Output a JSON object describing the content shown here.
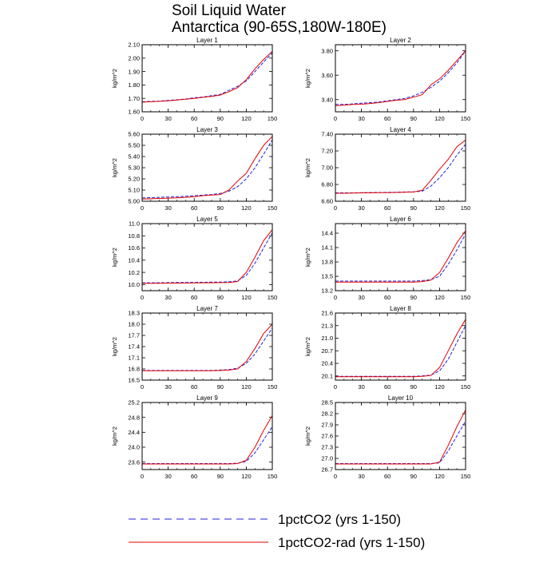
{
  "figure": {
    "title_line1": "Soil Liquid Water",
    "title_line2": "Antarctica (90-65S,180W-180E)",
    "ylabel": "kg/m^2",
    "legend": [
      {
        "label": "1pctCO2 (yrs 1-150)",
        "color": "#2020e0",
        "dash": true
      },
      {
        "label": "1pctCO2-rad (yrs 1-150)",
        "color": "#e00000",
        "dash": false
      }
    ]
  },
  "chart_data": [
    {
      "type": "line",
      "title": "Layer 1",
      "ylabel": "kg/m^2",
      "xlim": [
        0,
        150
      ],
      "ylim": [
        1.6,
        2.1
      ],
      "x_ticks": [
        0,
        30,
        60,
        90,
        120,
        150
      ],
      "y_ticks": [
        1.6,
        1.7,
        1.8,
        1.9,
        2.0,
        2.1
      ],
      "y_tick_labels": [
        "1.60",
        "1.70",
        "1.80",
        "1.90",
        "2.00",
        "2.10"
      ],
      "x": [
        0,
        10,
        20,
        30,
        40,
        50,
        60,
        70,
        80,
        90,
        100,
        110,
        120,
        130,
        140,
        150
      ],
      "series": [
        {
          "name": "1pctCO2 (yrs 1-150)",
          "color": "#2020e0",
          "dash": true,
          "values": [
            1.675,
            1.678,
            1.68,
            1.685,
            1.69,
            1.695,
            1.705,
            1.71,
            1.72,
            1.73,
            1.76,
            1.79,
            1.83,
            1.9,
            1.97,
            2.04
          ]
        },
        {
          "name": "1pctCO2-rad (yrs 1-150)",
          "color": "#e00000",
          "dash": false,
          "values": [
            1.672,
            1.675,
            1.678,
            1.682,
            1.688,
            1.694,
            1.7,
            1.708,
            1.715,
            1.725,
            1.75,
            1.78,
            1.84,
            1.92,
            1.99,
            2.05
          ]
        }
      ]
    },
    {
      "type": "line",
      "title": "Layer 2",
      "ylabel": "kg/m^2",
      "xlim": [
        0,
        150
      ],
      "ylim": [
        3.3,
        3.85
      ],
      "x_ticks": [
        0,
        30,
        60,
        90,
        120,
        150
      ],
      "y_ticks": [
        3.4,
        3.6,
        3.8
      ],
      "y_tick_labels": [
        "3.40",
        "3.60",
        "3.80"
      ],
      "x": [
        0,
        10,
        20,
        30,
        40,
        50,
        60,
        70,
        80,
        90,
        100,
        110,
        120,
        130,
        140,
        150
      ],
      "series": [
        {
          "name": "1pctCO2 (yrs 1-150)",
          "color": "#2020e0",
          "dash": true,
          "values": [
            3.36,
            3.36,
            3.365,
            3.37,
            3.375,
            3.38,
            3.39,
            3.4,
            3.41,
            3.43,
            3.46,
            3.5,
            3.55,
            3.62,
            3.7,
            3.8
          ]
        },
        {
          "name": "1pctCO2-rad (yrs 1-150)",
          "color": "#e00000",
          "dash": false,
          "values": [
            3.35,
            3.355,
            3.36,
            3.362,
            3.368,
            3.375,
            3.385,
            3.395,
            3.4,
            3.42,
            3.44,
            3.52,
            3.57,
            3.64,
            3.72,
            3.8
          ]
        }
      ]
    },
    {
      "type": "line",
      "title": "Layer 3",
      "ylabel": "kg/m^2",
      "xlim": [
        0,
        150
      ],
      "ylim": [
        5.0,
        5.6
      ],
      "x_ticks": [
        0,
        30,
        60,
        90,
        120,
        150
      ],
      "y_ticks": [
        5.0,
        5.1,
        5.2,
        5.3,
        5.4,
        5.5,
        5.6
      ],
      "y_tick_labels": [
        "5.00",
        "5.10",
        "5.20",
        "5.30",
        "5.40",
        "5.50",
        "5.60"
      ],
      "x": [
        0,
        10,
        20,
        30,
        40,
        50,
        60,
        70,
        80,
        90,
        100,
        110,
        120,
        130,
        140,
        150
      ],
      "series": [
        {
          "name": "1pctCO2 (yrs 1-150)",
          "color": "#2020e0",
          "dash": true,
          "values": [
            5.03,
            5.032,
            5.035,
            5.038,
            5.04,
            5.045,
            5.05,
            5.055,
            5.06,
            5.07,
            5.09,
            5.13,
            5.2,
            5.3,
            5.42,
            5.55
          ]
        },
        {
          "name": "1pctCO2-rad (yrs 1-150)",
          "color": "#e00000",
          "dash": false,
          "values": [
            5.02,
            5.022,
            5.025,
            5.028,
            5.03,
            5.035,
            5.04,
            5.05,
            5.055,
            5.06,
            5.1,
            5.18,
            5.25,
            5.38,
            5.5,
            5.58
          ]
        }
      ]
    },
    {
      "type": "line",
      "title": "Layer 4",
      "ylabel": "kg/m^2",
      "xlim": [
        0,
        150
      ],
      "ylim": [
        6.6,
        7.4
      ],
      "x_ticks": [
        0,
        30,
        60,
        90,
        120,
        150
      ],
      "y_ticks": [
        6.6,
        6.8,
        7.0,
        7.2,
        7.4
      ],
      "y_tick_labels": [
        "6.60",
        "6.80",
        "7.00",
        "7.20",
        "7.40"
      ],
      "x": [
        0,
        10,
        20,
        30,
        40,
        50,
        60,
        70,
        80,
        90,
        100,
        110,
        120,
        130,
        140,
        150
      ],
      "series": [
        {
          "name": "1pctCO2 (yrs 1-150)",
          "color": "#2020e0",
          "dash": true,
          "values": [
            6.7,
            6.7,
            6.7,
            6.702,
            6.704,
            6.705,
            6.706,
            6.708,
            6.71,
            6.712,
            6.72,
            6.78,
            6.88,
            7.0,
            7.15,
            7.28
          ]
        },
        {
          "name": "1pctCO2-rad (yrs 1-150)",
          "color": "#e00000",
          "dash": false,
          "values": [
            6.695,
            6.695,
            6.697,
            6.7,
            6.7,
            6.702,
            6.703,
            6.705,
            6.708,
            6.71,
            6.73,
            6.85,
            6.98,
            7.1,
            7.25,
            7.33
          ]
        }
      ]
    },
    {
      "type": "line",
      "title": "Layer 5",
      "ylabel": "kg/m^2",
      "xlim": [
        0,
        150
      ],
      "ylim": [
        9.9,
        11.0
      ],
      "x_ticks": [
        0,
        30,
        60,
        90,
        120,
        150
      ],
      "y_ticks": [
        10.0,
        10.2,
        10.4,
        10.6,
        10.8,
        11.0
      ],
      "y_tick_labels": [
        "10.0",
        "10.2",
        "10.4",
        "10.6",
        "10.8",
        "11.0"
      ],
      "x": [
        0,
        10,
        20,
        30,
        40,
        50,
        60,
        70,
        80,
        90,
        100,
        110,
        120,
        130,
        140,
        150
      ],
      "series": [
        {
          "name": "1pctCO2 (yrs 1-150)",
          "color": "#2020e0",
          "dash": true,
          "values": [
            10.03,
            10.03,
            10.03,
            10.032,
            10.034,
            10.035,
            10.036,
            10.038,
            10.04,
            10.04,
            10.045,
            10.06,
            10.15,
            10.35,
            10.6,
            10.85
          ]
        },
        {
          "name": "1pctCO2-rad (yrs 1-150)",
          "color": "#e00000",
          "dash": false,
          "values": [
            10.02,
            10.02,
            10.022,
            10.024,
            10.025,
            10.026,
            10.028,
            10.03,
            10.03,
            10.032,
            10.035,
            10.05,
            10.2,
            10.45,
            10.72,
            10.9
          ]
        }
      ]
    },
    {
      "type": "line",
      "title": "Layer 6",
      "ylabel": "kg/m^2",
      "xlim": [
        0,
        150
      ],
      "ylim": [
        13.2,
        14.6
      ],
      "x_ticks": [
        0,
        30,
        60,
        90,
        120,
        150
      ],
      "y_ticks": [
        13.2,
        13.5,
        13.8,
        14.1,
        14.4
      ],
      "y_tick_labels": [
        "13.2",
        "13.5",
        "13.8",
        "14.1",
        "14.4"
      ],
      "x": [
        0,
        10,
        20,
        30,
        40,
        50,
        60,
        70,
        80,
        90,
        100,
        110,
        120,
        130,
        140,
        150
      ],
      "series": [
        {
          "name": "1pctCO2 (yrs 1-150)",
          "color": "#2020e0",
          "dash": true,
          "values": [
            13.4,
            13.4,
            13.4,
            13.4,
            13.4,
            13.4,
            13.4,
            13.4,
            13.4,
            13.4,
            13.41,
            13.43,
            13.5,
            13.75,
            14.05,
            14.38
          ]
        },
        {
          "name": "1pctCO2-rad (yrs 1-150)",
          "color": "#e00000",
          "dash": false,
          "values": [
            13.38,
            13.38,
            13.38,
            13.38,
            13.38,
            13.38,
            13.38,
            13.38,
            13.38,
            13.38,
            13.39,
            13.42,
            13.58,
            13.88,
            14.2,
            14.45
          ]
        }
      ]
    },
    {
      "type": "line",
      "title": "Layer 7",
      "ylabel": "kg/m^2",
      "xlim": [
        0,
        150
      ],
      "ylim": [
        16.5,
        18.3
      ],
      "x_ticks": [
        0,
        30,
        60,
        90,
        120,
        150
      ],
      "y_ticks": [
        16.5,
        16.8,
        17.1,
        17.4,
        17.7,
        18.0,
        18.3
      ],
      "y_tick_labels": [
        "16.5",
        "16.8",
        "17.1",
        "17.4",
        "17.7",
        "18.0",
        "18.3"
      ],
      "x": [
        0,
        10,
        20,
        30,
        40,
        50,
        60,
        70,
        80,
        90,
        100,
        110,
        120,
        130,
        140,
        150
      ],
      "series": [
        {
          "name": "1pctCO2 (yrs 1-150)",
          "color": "#2020e0",
          "dash": true,
          "values": [
            16.76,
            16.76,
            16.76,
            16.76,
            16.76,
            16.76,
            16.76,
            16.76,
            16.76,
            16.77,
            16.78,
            16.82,
            16.95,
            17.2,
            17.55,
            17.9
          ]
        },
        {
          "name": "1pctCO2-rad (yrs 1-150)",
          "color": "#e00000",
          "dash": false,
          "values": [
            16.75,
            16.75,
            16.75,
            16.75,
            16.75,
            16.75,
            16.75,
            16.75,
            16.75,
            16.76,
            16.77,
            16.8,
            17.0,
            17.35,
            17.75,
            18.0
          ]
        }
      ]
    },
    {
      "type": "line",
      "title": "Layer 8",
      "ylabel": "kg/m^2",
      "xlim": [
        0,
        150
      ],
      "ylim": [
        20.0,
        21.6
      ],
      "x_ticks": [
        0,
        30,
        60,
        90,
        120,
        150
      ],
      "y_ticks": [
        20.1,
        20.4,
        20.7,
        21.0,
        21.3,
        21.6
      ],
      "y_tick_labels": [
        "20.1",
        "20.4",
        "20.7",
        "21.0",
        "21.3",
        "21.6"
      ],
      "x": [
        0,
        10,
        20,
        30,
        40,
        50,
        60,
        70,
        80,
        90,
        100,
        110,
        120,
        130,
        140,
        150
      ],
      "series": [
        {
          "name": "1pctCO2 (yrs 1-150)",
          "color": "#2020e0",
          "dash": true,
          "values": [
            20.09,
            20.09,
            20.09,
            20.09,
            20.09,
            20.09,
            20.09,
            20.09,
            20.09,
            20.09,
            20.1,
            20.12,
            20.22,
            20.5,
            20.9,
            21.3
          ]
        },
        {
          "name": "1pctCO2-rad (yrs 1-150)",
          "color": "#e00000",
          "dash": false,
          "values": [
            20.08,
            20.08,
            20.08,
            20.08,
            20.08,
            20.08,
            20.08,
            20.08,
            20.08,
            20.08,
            20.09,
            20.11,
            20.3,
            20.7,
            21.1,
            21.45
          ]
        }
      ]
    },
    {
      "type": "line",
      "title": "Layer 9",
      "ylabel": "kg/m^2",
      "xlim": [
        0,
        150
      ],
      "ylim": [
        23.4,
        25.2
      ],
      "x_ticks": [
        0,
        30,
        60,
        90,
        120,
        150
      ],
      "y_ticks": [
        23.6,
        24.0,
        24.4,
        24.8,
        25.2
      ],
      "y_tick_labels": [
        "23.6",
        "24.0",
        "24.4",
        "24.8",
        "25.2"
      ],
      "x": [
        0,
        10,
        20,
        30,
        40,
        50,
        60,
        70,
        80,
        90,
        100,
        110,
        120,
        130,
        140,
        150
      ],
      "series": [
        {
          "name": "1pctCO2 (yrs 1-150)",
          "color": "#2020e0",
          "dash": true,
          "values": [
            23.56,
            23.56,
            23.56,
            23.56,
            23.56,
            23.56,
            23.56,
            23.56,
            23.56,
            23.56,
            23.56,
            23.57,
            23.62,
            23.85,
            24.2,
            24.55
          ]
        },
        {
          "name": "1pctCO2-rad (yrs 1-150)",
          "color": "#e00000",
          "dash": false,
          "values": [
            23.55,
            23.55,
            23.55,
            23.55,
            23.55,
            23.55,
            23.55,
            23.55,
            23.55,
            23.55,
            23.55,
            23.56,
            23.65,
            24.0,
            24.45,
            24.85
          ]
        }
      ]
    },
    {
      "type": "line",
      "title": "Layer 10",
      "ylabel": "kg/m^2",
      "xlim": [
        0,
        150
      ],
      "ylim": [
        26.7,
        28.5
      ],
      "x_ticks": [
        0,
        30,
        60,
        90,
        120,
        150
      ],
      "y_ticks": [
        26.7,
        27.0,
        27.3,
        27.6,
        27.9,
        28.2,
        28.5
      ],
      "y_tick_labels": [
        "26.7",
        "27.0",
        "27.3",
        "27.6",
        "27.9",
        "28.2",
        "28.5"
      ],
      "x": [
        0,
        10,
        20,
        30,
        40,
        50,
        60,
        70,
        80,
        90,
        100,
        110,
        120,
        130,
        140,
        150
      ],
      "series": [
        {
          "name": "1pctCO2 (yrs 1-150)",
          "color": "#2020e0",
          "dash": true,
          "values": [
            26.86,
            26.86,
            26.86,
            26.86,
            26.86,
            26.86,
            26.86,
            26.86,
            26.86,
            26.86,
            26.86,
            26.86,
            26.88,
            27.2,
            27.6,
            28.0
          ]
        },
        {
          "name": "1pctCO2-rad (yrs 1-150)",
          "color": "#e00000",
          "dash": false,
          "values": [
            26.85,
            26.85,
            26.85,
            26.85,
            26.85,
            26.85,
            26.85,
            26.85,
            26.85,
            26.85,
            26.85,
            26.85,
            26.9,
            27.35,
            27.85,
            28.3
          ]
        }
      ]
    }
  ]
}
